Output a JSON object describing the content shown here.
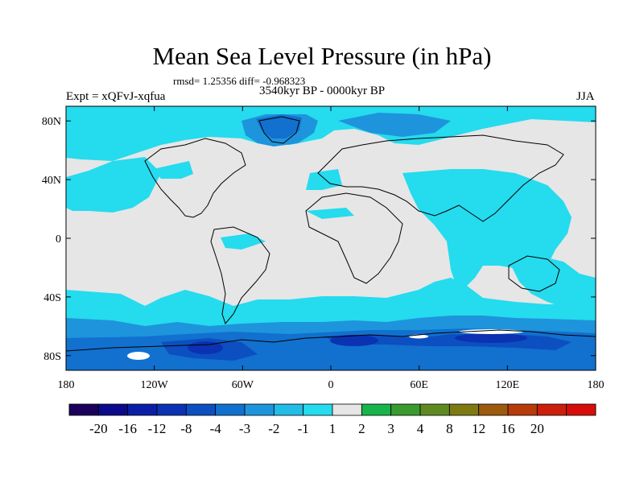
{
  "title": "Mean Sea Level Pressure (in hPa)",
  "stats": "rmsd= 1.25356 diff= -0.968323",
  "experiment": "Expt = xQFvJ-xqfua",
  "period": "3540kyr BP - 0000kyr BP",
  "season": "JJA",
  "map": {
    "lon_range": [
      -180,
      180
    ],
    "lat_range": [
      -90,
      90
    ],
    "lat_ticks": [
      {
        "value": 80,
        "label": "80N"
      },
      {
        "value": 40,
        "label": "40N"
      },
      {
        "value": 0,
        "label": "0"
      },
      {
        "value": -40,
        "label": "40S"
      },
      {
        "value": -80,
        "label": "80S"
      }
    ],
    "lon_ticks": [
      {
        "value": -180,
        "label": "180"
      },
      {
        "value": -120,
        "label": "120W"
      },
      {
        "value": -60,
        "label": "60W"
      },
      {
        "value": 0,
        "label": "0"
      },
      {
        "value": 60,
        "label": "60E"
      },
      {
        "value": 120,
        "label": "120E"
      },
      {
        "value": 180,
        "label": "180"
      }
    ],
    "background_color": "#e6e6e6"
  },
  "colorbar": {
    "colors": [
      "#1a005c",
      "#0a0a8a",
      "#0b1fa6",
      "#0b32b2",
      "#0c4fc0",
      "#1270cf",
      "#1e94dc",
      "#22bce6",
      "#25dbee",
      "#e6e6e6",
      "#18b44a",
      "#3a9a2e",
      "#5f8a22",
      "#7e7a12",
      "#9d5a0e",
      "#b73a0a",
      "#cb1f0a",
      "#d60d0a"
    ],
    "labels": [
      "-20",
      "-16",
      "-12",
      "-8",
      "-4",
      "-3",
      "-2",
      "-1",
      "1",
      "2",
      "3",
      "4",
      "8",
      "12",
      "16",
      "20"
    ]
  }
}
